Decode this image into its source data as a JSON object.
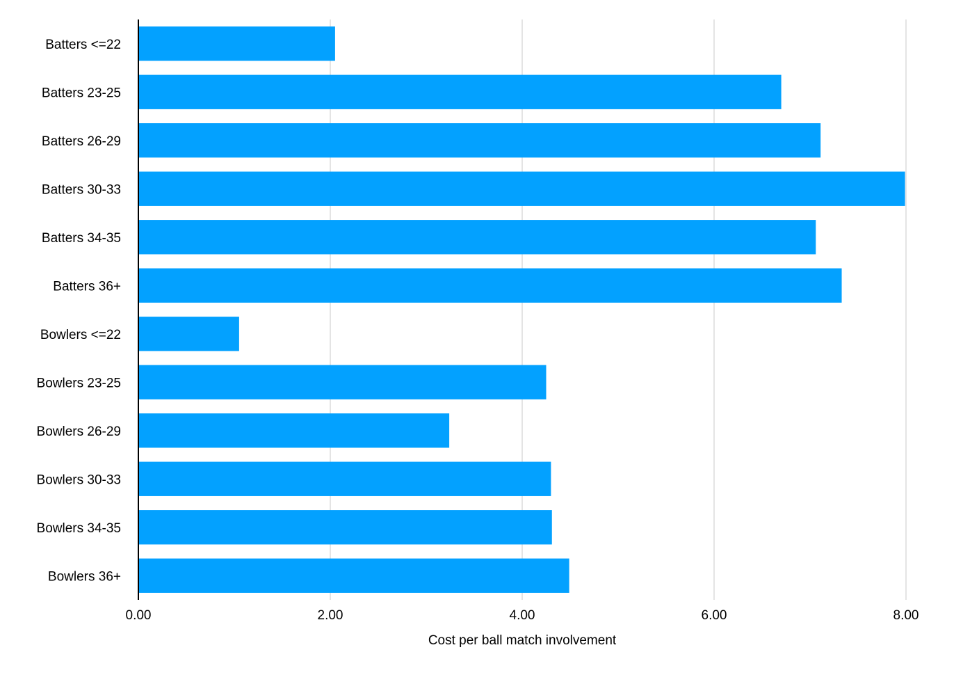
{
  "chart_data": {
    "type": "bar",
    "orientation": "horizontal",
    "categories": [
      "Batters <=22",
      "Batters 23-25",
      "Batters 26-29",
      "Batters 30-33",
      "Batters 34-35",
      "Batters 36+",
      "Bowlers <=22",
      "Bowlers 23-25",
      "Bowlers 26-29",
      "Bowlers 30-33",
      "Bowlers 34-35",
      "Bowlers 36+"
    ],
    "values": [
      2.05,
      6.7,
      7.11,
      7.99,
      7.06,
      7.33,
      1.05,
      4.25,
      3.24,
      4.3,
      4.31,
      4.49
    ],
    "title": "",
    "xlabel": "Cost per ball match involvement",
    "ylabel": "",
    "xlim": [
      0,
      8
    ],
    "xticks": [
      "0.00",
      "2.00",
      "4.00",
      "6.00",
      "8.00"
    ],
    "xtick_values": [
      0,
      2,
      4,
      6,
      8
    ],
    "grid": "vertical",
    "legend": "none",
    "bar_color": "#03a1ff"
  }
}
